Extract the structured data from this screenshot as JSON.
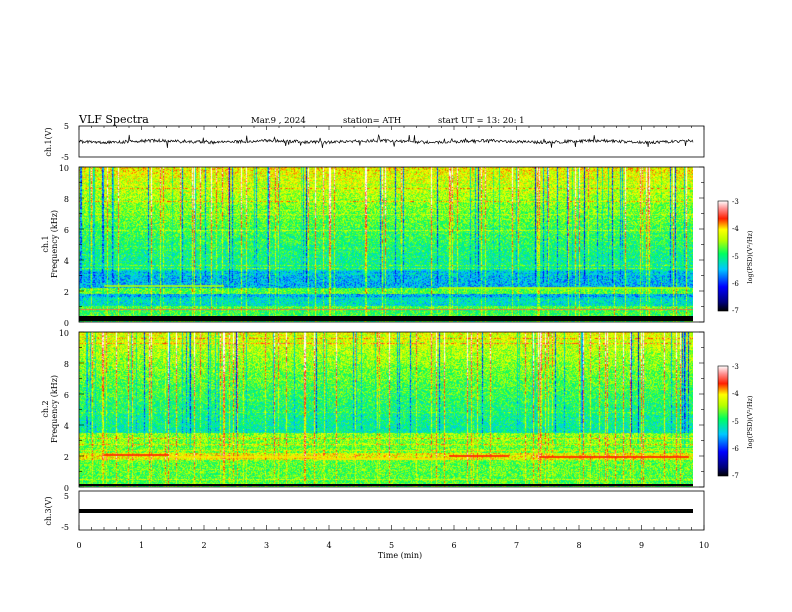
{
  "header": {
    "title": "VLF  Spectra",
    "date": "Mar.9  , 2024",
    "station": "station= ATH",
    "start": "start  UT  =    13: 20: 1"
  },
  "chart_data": [
    {
      "type": "line",
      "name": "ch1-waveform",
      "ylabel": "ch.1(V)",
      "yticks": [
        "5",
        "-5"
      ],
      "ylim": [
        -5,
        5
      ],
      "xlim": [
        0,
        10
      ],
      "mean": 0,
      "noise": "small fluctuations with occasional spikes",
      "xmax_data": 9.8
    },
    {
      "type": "heatmap",
      "name": "ch1-spectrogram",
      "ylabel": "Frequency  (kHz)",
      "chlabel": "ch.1",
      "yticks": [
        "0",
        "2",
        "4",
        "6",
        "8",
        "10"
      ],
      "ylim": [
        0,
        10
      ],
      "xlim": [
        0,
        10
      ],
      "colorbar": {
        "label": "log(PSD)(V²/Hz)",
        "ticks": [
          "-3",
          "-4",
          "-5",
          "-6",
          "-7"
        ],
        "range": [
          -7,
          -3
        ]
      }
    },
    {
      "type": "heatmap",
      "name": "ch2-spectrogram",
      "ylabel": "Frequency  (kHz)",
      "chlabel": "ch.2",
      "yticks": [
        "0",
        "2",
        "4",
        "6",
        "8",
        "10"
      ],
      "ylim": [
        0,
        10
      ],
      "xlim": [
        0,
        10
      ],
      "colorbar": {
        "label": "log(PSD)(V²/Hz)",
        "ticks": [
          "-3",
          "-4",
          "-5",
          "-6",
          "-7"
        ],
        "range": [
          -7,
          -3
        ]
      }
    },
    {
      "type": "line",
      "name": "ch3-waveform",
      "ylabel": "ch.3(V)",
      "yticks": [
        "5",
        "-5"
      ],
      "ylim": [
        -5,
        5
      ],
      "xlim": [
        0,
        10
      ],
      "level": 0,
      "xlabel": "Time  (min)",
      "xticks": [
        "0",
        "1",
        "2",
        "3",
        "4",
        "5",
        "6",
        "7",
        "8",
        "9",
        "10"
      ]
    }
  ]
}
